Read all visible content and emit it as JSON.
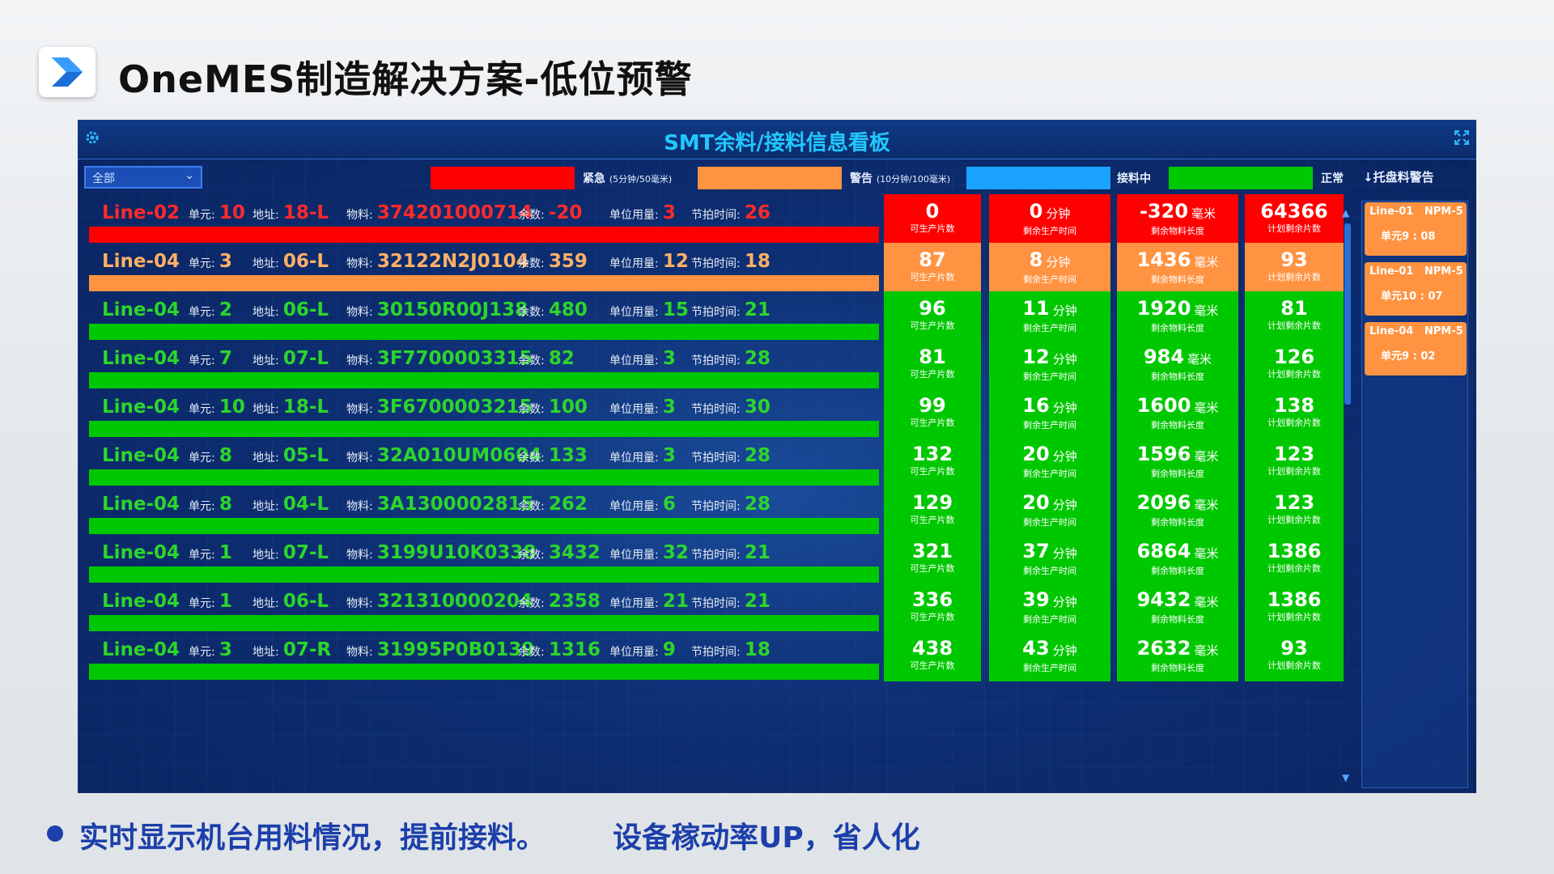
{
  "slide": {
    "title": "OneMES制造解决方案-低位预警",
    "bullet_left": "实时显示机台用料情况，提前接料。",
    "bullet_right": "设备稼动率UP，省人化"
  },
  "dashboard": {
    "title": "SMT余料/接料信息看板",
    "filter_value": "全部",
    "legend": [
      {
        "color": "#ff0000",
        "label": "紧急",
        "note": "(5分钟/50毫米)"
      },
      {
        "color": "#ff9341",
        "label": "警告",
        "note": "(10分钟/100毫米)"
      },
      {
        "color": "#1aa3ff",
        "label": "接料中",
        "note": ""
      },
      {
        "color": "#00c800",
        "label": "正常",
        "note": ""
      }
    ],
    "warn_header": "↓托盘料警告",
    "labels": {
      "unit": "单元:",
      "addr": "地址:",
      "material": "物料:",
      "remain": "余数:",
      "usage": "单位用量:",
      "takt": "节拍时间:",
      "cap_pcs": "可生产片数",
      "cap_time": "剩余生产时间",
      "cap_len": "剩余物料长度",
      "cap_plan": "计划剩余片数",
      "u_min": "分钟",
      "u_mm": "毫米"
    },
    "colors": {
      "red": "#ff0000",
      "orange": "#ff9341",
      "green": "#00c800",
      "text_red": "#ff2a2a",
      "text_orange": "#ffb066",
      "text_green": "#2bd62b"
    },
    "rows": [
      {
        "status": "red",
        "line": "Line-02",
        "unit": "10",
        "addr": "18-L",
        "material": "374201000714",
        "remain": "-20",
        "usage": "3",
        "takt": "26",
        "pcs": "0",
        "minutes": "0",
        "length": "-320",
        "plan": "64366"
      },
      {
        "status": "orange",
        "line": "Line-04",
        "unit": "3",
        "addr": "06-L",
        "material": "32122N2J0104",
        "remain": "359",
        "usage": "12",
        "takt": "18",
        "pcs": "87",
        "minutes": "8",
        "length": "1436",
        "plan": "93"
      },
      {
        "status": "green",
        "line": "Line-04",
        "unit": "2",
        "addr": "06-L",
        "material": "30150R00J138",
        "remain": "480",
        "usage": "15",
        "takt": "21",
        "pcs": "96",
        "minutes": "11",
        "length": "1920",
        "plan": "81"
      },
      {
        "status": "green",
        "line": "Line-04",
        "unit": "7",
        "addr": "07-L",
        "material": "3F7700003315",
        "remain": "82",
        "usage": "3",
        "takt": "28",
        "pcs": "81",
        "minutes": "12",
        "length": "984",
        "plan": "126"
      },
      {
        "status": "green",
        "line": "Line-04",
        "unit": "10",
        "addr": "18-L",
        "material": "3F6700003215",
        "remain": "100",
        "usage": "3",
        "takt": "30",
        "pcs": "99",
        "minutes": "16",
        "length": "1600",
        "plan": "138"
      },
      {
        "status": "green",
        "line": "Line-04",
        "unit": "8",
        "addr": "05-L",
        "material": "32A010UM0604",
        "remain": "133",
        "usage": "3",
        "takt": "28",
        "pcs": "132",
        "minutes": "20",
        "length": "1596",
        "plan": "123"
      },
      {
        "status": "green",
        "line": "Line-04",
        "unit": "8",
        "addr": "04-L",
        "material": "3A1300002815",
        "remain": "262",
        "usage": "6",
        "takt": "28",
        "pcs": "129",
        "minutes": "20",
        "length": "2096",
        "plan": "123"
      },
      {
        "status": "green",
        "line": "Line-04",
        "unit": "1",
        "addr": "07-L",
        "material": "3199U10K0338",
        "remain": "3432",
        "usage": "32",
        "takt": "21",
        "pcs": "321",
        "minutes": "37",
        "length": "6864",
        "plan": "1386"
      },
      {
        "status": "green",
        "line": "Line-04",
        "unit": "1",
        "addr": "06-L",
        "material": "321310000204",
        "remain": "2358",
        "usage": "21",
        "takt": "21",
        "pcs": "336",
        "minutes": "39",
        "length": "9432",
        "plan": "1386"
      },
      {
        "status": "green",
        "line": "Line-04",
        "unit": "3",
        "addr": "07-R",
        "material": "31995P0B0139",
        "remain": "1316",
        "usage": "9",
        "takt": "18",
        "pcs": "438",
        "minutes": "43",
        "length": "2632",
        "plan": "93"
      }
    ],
    "warnings": [
      {
        "line": "Line-01",
        "machine": "NPM-5",
        "slot": "单元9 : 08"
      },
      {
        "line": "Line-01",
        "machine": "NPM-5",
        "slot": "单元10 : 07"
      },
      {
        "line": "Line-04",
        "machine": "NPM-5",
        "slot": "单元9 : 02"
      }
    ]
  }
}
